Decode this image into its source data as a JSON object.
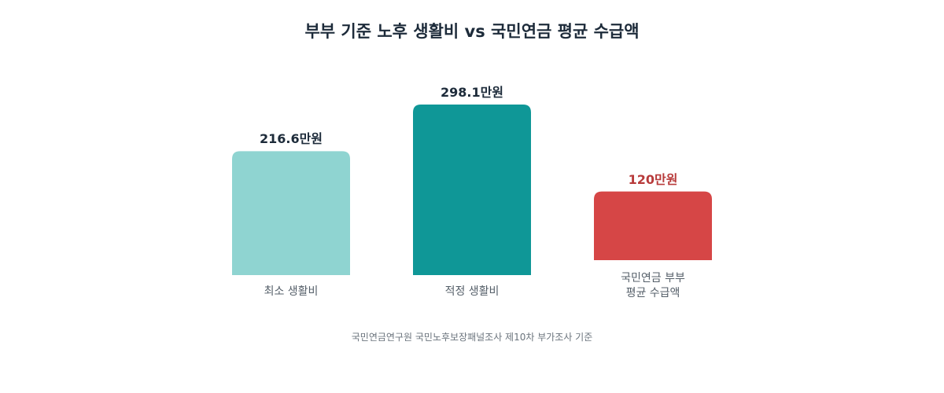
{
  "chart_data": {
    "type": "bar",
    "title": "부부 기준 노후 생활비 vs 국민연금 평균 수급액",
    "categories": [
      "최소 생활비",
      "적정 생활비",
      "국민연금 부부\n평균 수급액"
    ],
    "values": [
      216.6,
      298.1,
      120
    ],
    "value_labels": [
      "216.6만원",
      "298.1만원",
      "120만원"
    ],
    "colors": [
      "#8fd4d1",
      "#0f9797",
      "#d64646"
    ],
    "value_label_colors": [
      "#1d2b3a",
      "#1d2b3a",
      "#b83b3b"
    ],
    "grid": false,
    "legend": "none"
  },
  "source": "국민연금연구원 국민노후보장패널조사 제10차 부가조사 기준"
}
